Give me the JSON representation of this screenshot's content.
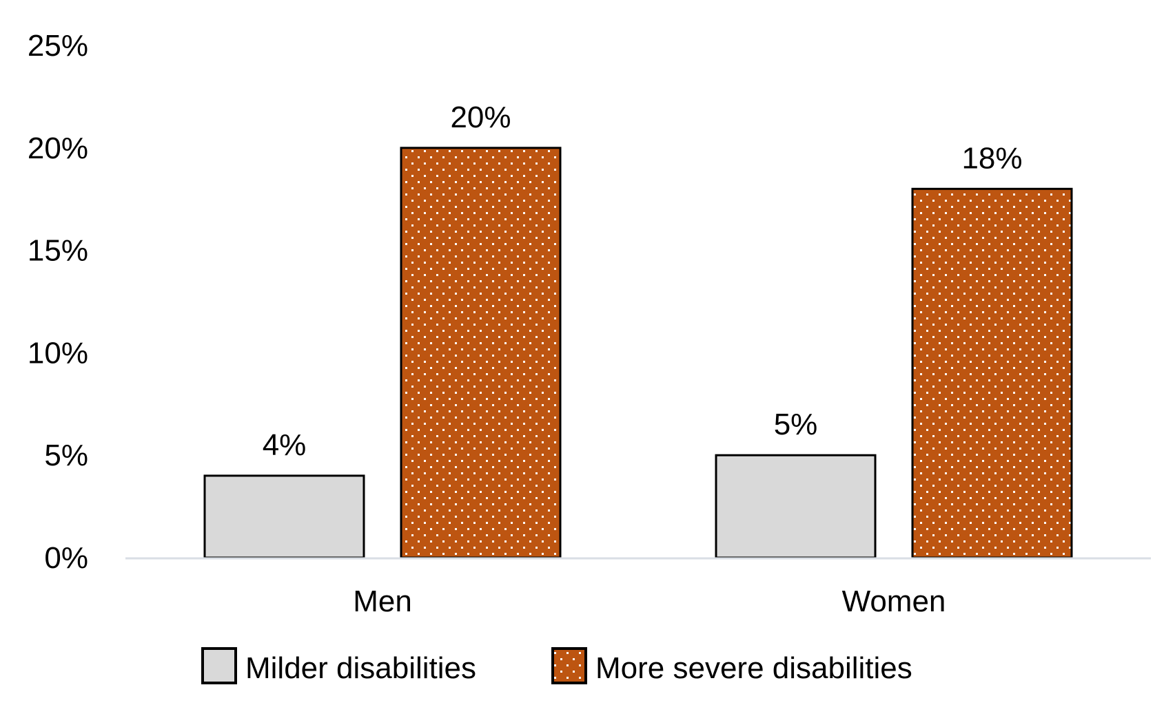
{
  "chart_data": {
    "type": "bar",
    "title": "",
    "xlabel": "",
    "ylabel": "",
    "categories": [
      "Men",
      "Women"
    ],
    "series": [
      {
        "name": "Milder disabilities",
        "values": [
          4,
          5
        ],
        "labels": [
          "4%",
          "5%"
        ],
        "color": "#d9d9d9",
        "pattern": "none"
      },
      {
        "name": "More severe disabilities",
        "values": [
          20,
          18
        ],
        "labels": [
          "20%",
          "18%"
        ],
        "color": "#bd5511",
        "pattern": "white-dots"
      }
    ],
    "ylim": [
      0,
      25
    ],
    "yticks": [
      0,
      5,
      10,
      15,
      20,
      25
    ],
    "ytick_labels": [
      "0%",
      "5%",
      "10%",
      "15%",
      "20%",
      "25%"
    ],
    "grid": false,
    "legend": {
      "placement": "bottom-center",
      "entries": [
        "Milder disabilities",
        "More severe disabilities"
      ]
    },
    "bar_outline_color": "#000000",
    "axis_color": "#d9dee5"
  }
}
